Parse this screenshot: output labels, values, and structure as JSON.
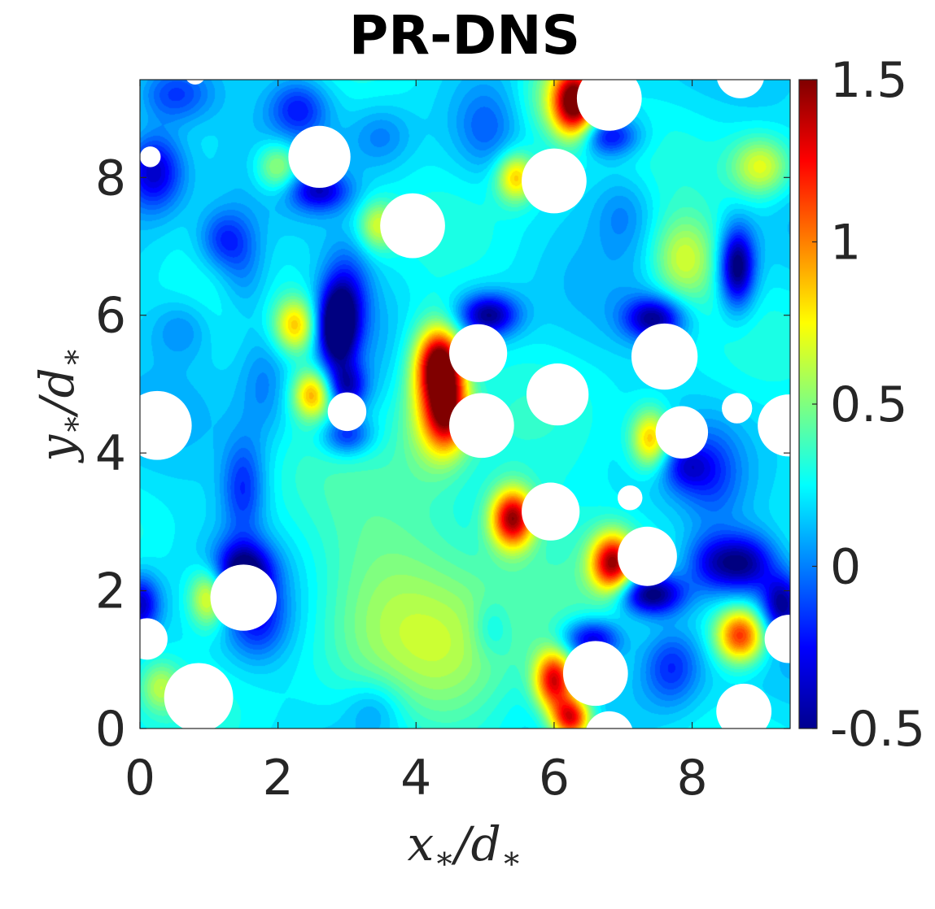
{
  "chart_data": {
    "type": "heatmap",
    "title": "PR-DNS",
    "xlabel": {
      "main": "x",
      "sub": "∗",
      "sep": "/",
      "den": "d",
      "den_sub": "∗"
    },
    "ylabel": {
      "main": "y",
      "sub": "∗",
      "sep": "/",
      "den": "d",
      "den_sub": "∗"
    },
    "xlim": [
      0,
      9.42
    ],
    "ylim": [
      0,
      9.42
    ],
    "xticks": [
      "0",
      "2",
      "4",
      "6",
      "8"
    ],
    "yticks": [
      "0",
      "2",
      "4",
      "6",
      "8"
    ],
    "colorbar": {
      "colormap": "jet",
      "clim": [
        -0.5,
        1.5
      ],
      "ticks": [
        1.5,
        1,
        0.5,
        0,
        -0.5
      ],
      "tick_labels": [
        "1.5",
        "1",
        "0.5",
        "0",
        "-0.5"
      ]
    },
    "background_level": 0.2,
    "particles": [
      {
        "x": 0.8,
        "y": 9.5,
        "r": 0.15
      },
      {
        "x": 0.15,
        "y": 8.3,
        "r": 0.15
      },
      {
        "x": 2.6,
        "y": 8.3,
        "r": 0.45
      },
      {
        "x": 3.95,
        "y": 7.3,
        "r": 0.47
      },
      {
        "x": 6.0,
        "y": 7.95,
        "r": 0.47
      },
      {
        "x": 6.8,
        "y": 9.15,
        "r": 0.47
      },
      {
        "x": 8.7,
        "y": 9.5,
        "r": 0.35
      },
      {
        "x": 4.9,
        "y": 5.45,
        "r": 0.42
      },
      {
        "x": 7.6,
        "y": 5.4,
        "r": 0.48
      },
      {
        "x": 0.25,
        "y": 4.4,
        "r": 0.5
      },
      {
        "x": 3.0,
        "y": 4.6,
        "r": 0.28
      },
      {
        "x": 6.05,
        "y": 4.85,
        "r": 0.45
      },
      {
        "x": 4.95,
        "y": 4.4,
        "r": 0.47
      },
      {
        "x": 7.85,
        "y": 4.3,
        "r": 0.38
      },
      {
        "x": 8.65,
        "y": 4.65,
        "r": 0.22
      },
      {
        "x": 9.4,
        "y": 4.4,
        "r": 0.45
      },
      {
        "x": 7.1,
        "y": 3.35,
        "r": 0.18
      },
      {
        "x": 5.95,
        "y": 3.15,
        "r": 0.42
      },
      {
        "x": 7.35,
        "y": 2.5,
        "r": 0.43
      },
      {
        "x": 1.5,
        "y": 1.9,
        "r": 0.48
      },
      {
        "x": 0.1,
        "y": 1.3,
        "r": 0.3
      },
      {
        "x": 9.4,
        "y": 1.3,
        "r": 0.35
      },
      {
        "x": 6.6,
        "y": 0.8,
        "r": 0.47
      },
      {
        "x": 0.85,
        "y": 0.45,
        "r": 0.5
      },
      {
        "x": 8.75,
        "y": 0.25,
        "r": 0.4
      },
      {
        "x": 6.8,
        "y": -0.1,
        "r": 0.35
      }
    ],
    "features": [
      {
        "x": 6.3,
        "y": 9.1,
        "amp": 1.3,
        "sx": 0.22,
        "sy": 0.35
      },
      {
        "x": 6.0,
        "y": 9.15,
        "amp": 0.35,
        "sx": 0.4,
        "sy": 0.5
      },
      {
        "x": 4.35,
        "y": 5.3,
        "amp": 1.15,
        "sx": 0.22,
        "sy": 0.35
      },
      {
        "x": 4.45,
        "y": 4.6,
        "amp": 1.05,
        "sx": 0.22,
        "sy": 0.4
      },
      {
        "x": 4.2,
        "y": 4.9,
        "amp": 0.45,
        "sx": 0.3,
        "sy": 0.7
      },
      {
        "x": 5.4,
        "y": 3.05,
        "amp": 1.2,
        "sx": 0.22,
        "sy": 0.3
      },
      {
        "x": 6.85,
        "y": 2.4,
        "amp": 1.15,
        "sx": 0.22,
        "sy": 0.3
      },
      {
        "x": 6.0,
        "y": 0.7,
        "amp": 1.1,
        "sx": 0.2,
        "sy": 0.3
      },
      {
        "x": 6.25,
        "y": 0.15,
        "amp": 1.1,
        "sx": 0.2,
        "sy": 0.22
      },
      {
        "x": 8.7,
        "y": 1.35,
        "amp": 1.0,
        "sx": 0.25,
        "sy": 0.28
      },
      {
        "x": 2.25,
        "y": 5.85,
        "amp": 0.65,
        "sx": 0.22,
        "sy": 0.28
      },
      {
        "x": 2.5,
        "y": 4.85,
        "amp": 0.7,
        "sx": 0.2,
        "sy": 0.25
      },
      {
        "x": 1.0,
        "y": 1.9,
        "amp": 0.6,
        "sx": 0.2,
        "sy": 0.3
      },
      {
        "x": 7.4,
        "y": 4.2,
        "amp": 0.7,
        "sx": 0.2,
        "sy": 0.3
      },
      {
        "x": 2.0,
        "y": 8.15,
        "amp": 0.45,
        "sx": 0.22,
        "sy": 0.25
      },
      {
        "x": 5.45,
        "y": 8.0,
        "amp": 0.65,
        "sx": 0.2,
        "sy": 0.25
      },
      {
        "x": 9.0,
        "y": 8.15,
        "amp": 0.5,
        "sx": 0.3,
        "sy": 0.3
      },
      {
        "x": 3.45,
        "y": 7.3,
        "amp": 0.45,
        "sx": 0.2,
        "sy": 0.25
      },
      {
        "x": 0.3,
        "y": 0.6,
        "amp": 0.35,
        "sx": 0.2,
        "sy": 0.25
      },
      {
        "x": 7.8,
        "y": 6.8,
        "amp": 0.25,
        "sx": 0.3,
        "sy": 0.4
      },
      {
        "x": 8.0,
        "y": 6.8,
        "amp": 0.25,
        "sx": 0.35,
        "sy": 0.5
      },
      {
        "x": 4.2,
        "y": 2.5,
        "amp": 0.2,
        "sx": 1.1,
        "sy": 1.4
      },
      {
        "x": 5.8,
        "y": 1.8,
        "amp": 0.15,
        "sx": 0.8,
        "sy": 1.0
      },
      {
        "x": 4.5,
        "y": 0.9,
        "amp": 0.15,
        "sx": 0.6,
        "sy": 0.8
      },
      {
        "x": 3.4,
        "y": 1.6,
        "amp": 0.15,
        "sx": 0.7,
        "sy": 1.0
      },
      {
        "x": 2.85,
        "y": 5.8,
        "amp": -0.85,
        "sx": 0.2,
        "sy": 0.4
      },
      {
        "x": 3.0,
        "y": 6.3,
        "amp": -0.4,
        "sx": 0.25,
        "sy": 0.5
      },
      {
        "x": 5.05,
        "y": 6.0,
        "amp": -0.7,
        "sx": 0.3,
        "sy": 0.22
      },
      {
        "x": 7.45,
        "y": 5.95,
        "amp": -0.65,
        "sx": 0.3,
        "sy": 0.22
      },
      {
        "x": 8.65,
        "y": 6.7,
        "amp": -0.8,
        "sx": 0.18,
        "sy": 0.4
      },
      {
        "x": 0.2,
        "y": 8.1,
        "amp": -0.6,
        "sx": 0.3,
        "sy": 0.4
      },
      {
        "x": 1.5,
        "y": 2.3,
        "amp": -0.7,
        "sx": 0.3,
        "sy": 0.3
      },
      {
        "x": 1.7,
        "y": 1.6,
        "amp": -0.4,
        "sx": 0.3,
        "sy": 0.4
      },
      {
        "x": 7.4,
        "y": 1.95,
        "amp": -0.85,
        "sx": 0.35,
        "sy": 0.22
      },
      {
        "x": 9.3,
        "y": 1.8,
        "amp": -0.6,
        "sx": 0.2,
        "sy": 0.3
      },
      {
        "x": 6.55,
        "y": 1.3,
        "amp": -0.6,
        "sx": 0.3,
        "sy": 0.2
      },
      {
        "x": 7.7,
        "y": 0.9,
        "amp": -0.4,
        "sx": 0.3,
        "sy": 0.4
      },
      {
        "x": 0.0,
        "y": 1.8,
        "amp": -0.6,
        "sx": 0.2,
        "sy": 0.3
      },
      {
        "x": 2.6,
        "y": 7.8,
        "amp": -0.5,
        "sx": 0.3,
        "sy": 0.2
      },
      {
        "x": 6.8,
        "y": 8.6,
        "amp": -0.5,
        "sx": 0.3,
        "sy": 0.2
      },
      {
        "x": 3.0,
        "y": 4.25,
        "amp": -0.45,
        "sx": 0.25,
        "sy": 0.2
      },
      {
        "x": 3.0,
        "y": 4.95,
        "amp": -0.55,
        "sx": 0.2,
        "sy": 0.25
      },
      {
        "x": 0.5,
        "y": 9.2,
        "amp": -0.4,
        "sx": 0.4,
        "sy": 0.3
      },
      {
        "x": 2.3,
        "y": 9.0,
        "amp": -0.4,
        "sx": 0.3,
        "sy": 0.3
      },
      {
        "x": 8.3,
        "y": 2.4,
        "amp": -0.45,
        "sx": 0.3,
        "sy": 0.3
      },
      {
        "x": 8.8,
        "y": 2.4,
        "amp": -0.55,
        "sx": 0.3,
        "sy": 0.3
      },
      {
        "x": 7.9,
        "y": 3.8,
        "amp": -0.35,
        "sx": 0.25,
        "sy": 0.25
      },
      {
        "x": 8.3,
        "y": 3.7,
        "amp": -0.25,
        "sx": 0.3,
        "sy": 0.5
      },
      {
        "x": 1.5,
        "y": 3.5,
        "amp": -0.4,
        "sx": 0.22,
        "sy": 0.5
      },
      {
        "x": 1.5,
        "y": 6.7,
        "amp": -0.25,
        "sx": 0.25,
        "sy": 0.5
      },
      {
        "x": 1.2,
        "y": 7.1,
        "amp": -0.35,
        "sx": 0.25,
        "sy": 0.3
      },
      {
        "x": 1.8,
        "y": 5.0,
        "amp": -0.2,
        "sx": 0.25,
        "sy": 0.6
      },
      {
        "x": 5.0,
        "y": 8.7,
        "amp": -0.2,
        "sx": 0.3,
        "sy": 0.4
      },
      {
        "x": 3.5,
        "y": 8.6,
        "amp": -0.2,
        "sx": 0.3,
        "sy": 0.3
      },
      {
        "x": 0.6,
        "y": 5.8,
        "amp": -0.2,
        "sx": 0.3,
        "sy": 0.3
      },
      {
        "x": 7.0,
        "y": 7.5,
        "amp": -0.2,
        "sx": 0.3,
        "sy": 0.4
      },
      {
        "x": 5.1,
        "y": 1.45,
        "amp": -0.2,
        "sx": 0.2,
        "sy": 0.3
      },
      {
        "x": 3.4,
        "y": 0.3,
        "amp": -0.2,
        "sx": 0.3,
        "sy": 0.3
      }
    ]
  }
}
